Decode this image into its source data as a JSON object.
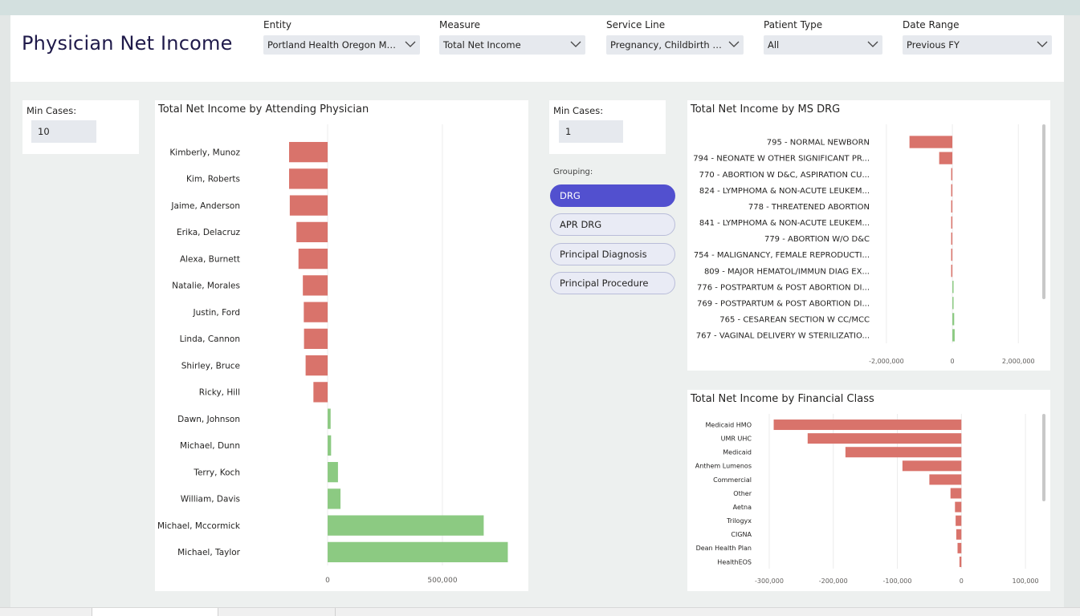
{
  "page": {
    "title": "Physician Net Income"
  },
  "filters": [
    {
      "label": "Entity",
      "value": "Portland Health Oregon Memorial"
    },
    {
      "label": "Measure",
      "value": "Total Net Income"
    },
    {
      "label": "Service Line",
      "value": "Pregnancy, Childbirth And Newborns"
    },
    {
      "label": "Patient Type",
      "value": "All"
    },
    {
      "label": "Date Range",
      "value": "Previous FY"
    }
  ],
  "min_cases_left": {
    "label": "Min Cases:",
    "value": "10"
  },
  "min_cases_right": {
    "label": "Min Cases:",
    "value": "1"
  },
  "grouping": {
    "label": "Grouping:",
    "options": [
      "DRG",
      "APR DRG",
      "Principal Diagnosis",
      "Principal Procedure"
    ],
    "selected": "DRG"
  },
  "colors": {
    "positive": "#8cca82",
    "negative": "#d9736b",
    "accent": "#5250cf"
  },
  "chart_data": [
    {
      "type": "bar",
      "orientation": "horizontal",
      "title": "Total Net Income by Attending Physician",
      "categories": [
        "Kimberly, Munoz",
        "Kim, Roberts",
        "Jaime, Anderson",
        "Erika, Delacruz",
        "Alexa, Burnett",
        "Natalie, Morales",
        "Justin, Ford",
        "Linda, Cannon",
        "Shirley, Bruce",
        "Ricky, Hill",
        "Dawn, Johnson",
        "Michael, Dunn",
        "Terry, Koch",
        "William, Davis",
        "Michael, Mccormick",
        "Michael, Taylor"
      ],
      "values": [
        -168000,
        -168000,
        -165000,
        -136000,
        -127000,
        -108000,
        -104000,
        -103000,
        -96000,
        -62000,
        13000,
        15000,
        45000,
        56000,
        680000,
        785000
      ],
      "xticks": [
        "0",
        "500,000"
      ],
      "xlim": [
        -350000,
        850000
      ],
      "grid": true
    },
    {
      "type": "bar",
      "orientation": "horizontal",
      "title": "Total Net Income by MS DRG",
      "categories": [
        "795 - NORMAL NEWBORN",
        "794 - NEONATE W OTHER SIGNIFICANT PR...",
        "770 - ABORTION W D&C, ASPIRATION CU...",
        "824 - LYMPHOMA & NON-ACUTE LEUKEM...",
        "778 - THREATENED ABORTION",
        "841 - LYMPHOMA & NON-ACUTE LEUKEM...",
        "779 - ABORTION W/O D&C",
        "754 - MALIGNANCY, FEMALE REPRODUCTI...",
        "809 - MAJOR HEMATOL/IMMUN DIAG EX...",
        "776 - POSTPARTUM & POST ABORTION DI...",
        "769 - POSTPARTUM & POST ABORTION DI...",
        "765 - CESAREAN SECTION W CC/MCC",
        "767 - VAGINAL DELIVERY W STERILIZATIO..."
      ],
      "values": [
        -1300000,
        -400000,
        -20000,
        -12000,
        -10000,
        -8000,
        -6000,
        -5000,
        -4000,
        15000,
        25000,
        55000,
        70000
      ],
      "xticks": [
        "-2,000,000",
        "0",
        "2,000,000"
      ],
      "xlim": [
        -2800000,
        2700000
      ],
      "grid": true
    },
    {
      "type": "bar",
      "orientation": "horizontal",
      "title": "Total Net Income by Financial Class",
      "categories": [
        "Medicaid HMO",
        "UMR UHC",
        "Medicaid",
        "Anthem Lumenos",
        "Commercial",
        "Other",
        "Aetna",
        "Trilogyx",
        "CIGNA",
        "Dean Health Plan",
        "HealthEOS"
      ],
      "values": [
        -293000,
        -240000,
        -181000,
        -92000,
        -50000,
        -17000,
        -10000,
        -9000,
        -8000,
        -6000,
        -3000
      ],
      "xticks": [
        "-300,000",
        "-200,000",
        "-100,000",
        "0",
        "100,000"
      ],
      "xlim": [
        -320000,
        125000
      ],
      "grid": true
    }
  ],
  "page_tabs": [
    "",
    "",
    ""
  ]
}
